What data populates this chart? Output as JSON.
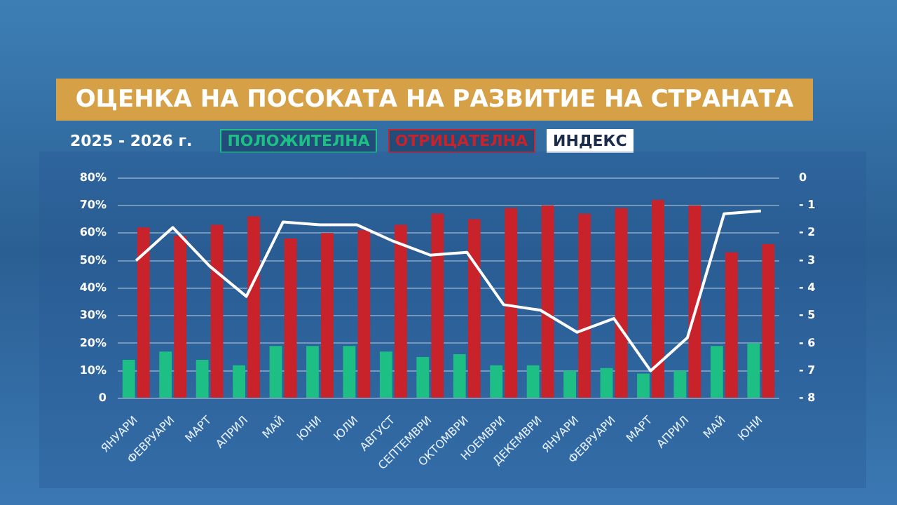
{
  "chart_data": {
    "type": "bar",
    "title": "ОЦЕНКА НА ПОСОКАТА НА РАЗВИТИЕ НА СТРАНАТА",
    "subtitle": "2025 - 2026 г.",
    "categories": [
      "ЯНУАРИ",
      "ФЕВРУАРИ",
      "МАРТ",
      "АПРИЛ",
      "МАЙ",
      "ЮНИ",
      "ЮЛИ",
      "АВГУСТ",
      "СЕПТЕМВРИ",
      "ОКТОМВРИ",
      "НОЕМВРИ",
      "ДЕКЕМВРИ",
      "ЯНУАРИ",
      "ФЕВРУАРИ",
      "МАРТ",
      "АПРИЛ",
      "МАЙ",
      "ЮНИ"
    ],
    "series": [
      {
        "name": "ПОЛОЖИТЕЛНА",
        "color": "#1dbf84",
        "values": [
          14,
          17,
          14,
          12,
          19,
          19,
          19,
          17,
          15,
          16,
          12,
          12,
          10,
          11,
          9,
          10,
          19,
          20
        ]
      },
      {
        "name": "ОТРИЦАТЕЛНА",
        "color": "#c8232b",
        "values": [
          62,
          59,
          63,
          66,
          58,
          60,
          61,
          63,
          67,
          65,
          69,
          70,
          67,
          69,
          72,
          70,
          53,
          56
        ]
      },
      {
        "name": "ИНДЕКС",
        "type": "line",
        "axis": "y2",
        "color": "#ffffff",
        "values": [
          -3.0,
          -1.8,
          -3.2,
          -4.3,
          -1.6,
          -1.7,
          -1.7,
          -2.3,
          -2.8,
          -2.7,
          -4.6,
          -4.8,
          -5.6,
          -5.1,
          -7.0,
          -5.8,
          -1.3,
          -1.2
        ]
      }
    ],
    "ylim": [
      0,
      80
    ],
    "yticks": [
      {
        "value": 0,
        "label": "0"
      },
      {
        "value": 10,
        "label": "10%"
      },
      {
        "value": 20,
        "label": "20%"
      },
      {
        "value": 30,
        "label": "30%"
      },
      {
        "value": 40,
        "label": "40%"
      },
      {
        "value": 50,
        "label": "50%"
      },
      {
        "value": 60,
        "label": "60%"
      },
      {
        "value": 70,
        "label": "70%"
      },
      {
        "value": 80,
        "label": "80%"
      }
    ],
    "y2lim": [
      -8,
      0
    ],
    "y2ticks": [
      {
        "value": 0,
        "label": "0"
      },
      {
        "value": -1,
        "label": "- 1"
      },
      {
        "value": -2,
        "label": "- 2"
      },
      {
        "value": -3,
        "label": "- 3"
      },
      {
        "value": -4,
        "label": "- 4"
      },
      {
        "value": -5,
        "label": "- 5"
      },
      {
        "value": -6,
        "label": "- 6"
      },
      {
        "value": -7,
        "label": "- 7"
      },
      {
        "value": -8,
        "label": "- 8"
      }
    ],
    "grid": "y",
    "legend": "top left",
    "marker": "none",
    "line_style": "solid"
  }
}
